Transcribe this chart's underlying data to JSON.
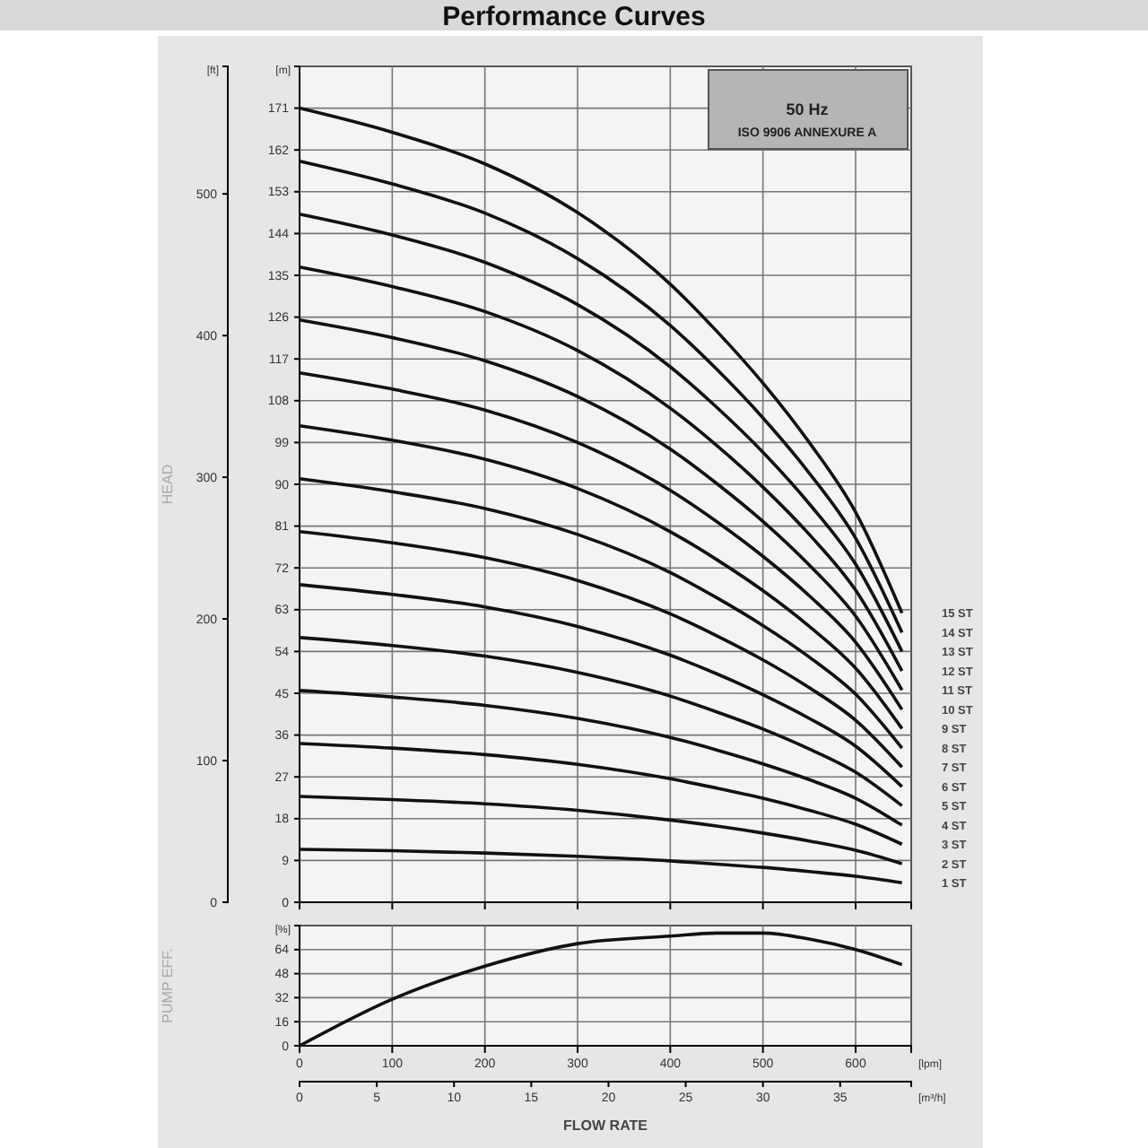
{
  "chart_data": [
    {
      "type": "line",
      "title": "Performance Curves",
      "y2label": "HEAD",
      "tick_labels": "y",
      "grid": true,
      "x": [
        0,
        100,
        200,
        300,
        400,
        450,
        500,
        550,
        600,
        650
      ],
      "xlim": [
        0,
        660
      ],
      "xticks": [
        {
          "value": 0,
          "label": null
        },
        {
          "value": 100,
          "label": null
        },
        {
          "value": 200,
          "label": null
        },
        {
          "value": 300,
          "label": null
        },
        {
          "value": 400,
          "label": null
        },
        {
          "value": 500,
          "label": null
        },
        {
          "value": 600,
          "label": null
        }
      ],
      "ylim": [
        0,
        180
      ],
      "yticks": [
        0,
        9,
        18,
        27,
        36,
        45,
        54,
        63,
        72,
        81,
        90,
        99,
        108,
        117,
        126,
        135,
        144,
        153,
        162,
        171
      ],
      "y2lim": [
        0,
        590
      ],
      "y2ticks": [
        0,
        100,
        200,
        300,
        400,
        500
      ],
      "annotations": [
        "[ft]",
        "[m]",
        "50 Hz",
        "ISO 9906 ANNEXURE A"
      ],
      "series": [
        {
          "name": "1 ST",
          "color": "#111111",
          "values": [
            11.4,
            11.1,
            10.6,
            9.9,
            8.9,
            8.2,
            7.5,
            6.6,
            5.6,
            4.2
          ]
        },
        {
          "name": "2 ST",
          "color": "#111111",
          "values": [
            22.8,
            22.1,
            21.2,
            19.8,
            17.7,
            16.4,
            14.9,
            13.2,
            11.2,
            8.3
          ]
        },
        {
          "name": "3 ST",
          "color": "#111111",
          "values": [
            34.2,
            33.2,
            31.8,
            29.7,
            26.6,
            24.6,
            22.4,
            19.8,
            16.8,
            12.5
          ]
        },
        {
          "name": "4 ST",
          "color": "#111111",
          "values": [
            45.6,
            44.2,
            42.4,
            39.6,
            35.5,
            32.8,
            29.8,
            26.4,
            22.4,
            16.6
          ]
        },
        {
          "name": "5 ST",
          "color": "#111111",
          "values": [
            57,
            55.3,
            53,
            49.5,
            44.4,
            41,
            37.3,
            33,
            28,
            20.8
          ]
        },
        {
          "name": "6 ST",
          "color": "#111111",
          "values": [
            68.4,
            66.3,
            63.6,
            59.4,
            53.2,
            49.2,
            44.7,
            39.6,
            33.6,
            24.9
          ]
        },
        {
          "name": "7 ST",
          "color": "#111111",
          "values": [
            79.8,
            77.4,
            74.2,
            69.3,
            62.1,
            57.4,
            52.2,
            46.2,
            39.2,
            29.1
          ]
        },
        {
          "name": "8 ST",
          "color": "#111111",
          "values": [
            91.2,
            88.4,
            84.8,
            79.2,
            71,
            65.6,
            59.6,
            52.8,
            44.8,
            33.2
          ]
        },
        {
          "name": "9 ST",
          "color": "#111111",
          "values": [
            102.6,
            99.5,
            95.4,
            89.1,
            79.8,
            73.8,
            67.1,
            59.4,
            50.4,
            37.4
          ]
        },
        {
          "name": "10 ST",
          "color": "#111111",
          "values": [
            114,
            110.5,
            106,
            99,
            88.7,
            82,
            74.5,
            66,
            56,
            41.5
          ]
        },
        {
          "name": "11 ST",
          "color": "#111111",
          "values": [
            125.4,
            121.6,
            116.6,
            108.9,
            97.6,
            90.2,
            82,
            72.6,
            61.6,
            45.7
          ]
        },
        {
          "name": "12 ST",
          "color": "#111111",
          "values": [
            136.8,
            132.6,
            127.2,
            118.8,
            106.4,
            98.4,
            89.4,
            79.2,
            67.2,
            49.8
          ]
        },
        {
          "name": "13 ST",
          "color": "#111111",
          "values": [
            148.2,
            143.7,
            137.8,
            128.7,
            115.3,
            106.6,
            96.9,
            85.8,
            72.8,
            54
          ]
        },
        {
          "name": "14 ST",
          "color": "#111111",
          "values": [
            159.6,
            154.7,
            148.4,
            138.6,
            124.2,
            114.8,
            104.3,
            92.4,
            78.4,
            58.1
          ]
        },
        {
          "name": "15 ST",
          "color": "#111111",
          "values": [
            171,
            165.8,
            159,
            148.5,
            133.1,
            123,
            111.8,
            99,
            84,
            62.3
          ]
        }
      ]
    },
    {
      "type": "line",
      "xlabel": "FLOW RATE",
      "ylabel": "PUMP EFF.",
      "grid": true,
      "x": [
        0,
        100,
        200,
        300,
        400,
        450,
        500,
        550,
        600,
        650
      ],
      "values": [
        0,
        31,
        53,
        68,
        73,
        75,
        75,
        71,
        64,
        54
      ],
      "xlim": [
        0,
        660
      ],
      "xticks": [
        0,
        100,
        200,
        300,
        400,
        500,
        600
      ],
      "ylim": [
        0,
        80
      ],
      "yticks": [
        0,
        16,
        32,
        48,
        64
      ],
      "x2lim": [
        0,
        39.6
      ],
      "x2ticks": [
        0,
        5,
        10,
        15,
        20,
        25,
        30,
        35
      ],
      "annotations": [
        "[%]",
        "[lpm]",
        "[m³/h]"
      ]
    }
  ]
}
